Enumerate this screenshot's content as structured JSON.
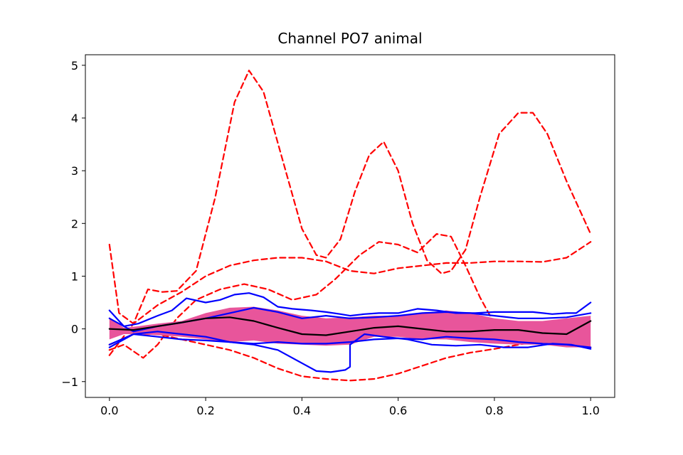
{
  "chart_data": {
    "type": "line",
    "title": "Channel PO7 animal",
    "xlabel": "",
    "ylabel": "",
    "xlim": [
      -0.05,
      1.05
    ],
    "ylim": [
      -1.3,
      5.2
    ],
    "x_ticks": [
      "0.0",
      "0.2",
      "0.4",
      "0.6",
      "0.8",
      "1.0"
    ],
    "y_ticks": [
      "−1",
      "0",
      "1",
      "2",
      "3",
      "4",
      "5"
    ],
    "grid": false,
    "band": {
      "color": "#e8559b",
      "x": [
        0.0,
        0.03,
        0.06,
        0.1,
        0.15,
        0.2,
        0.25,
        0.3,
        0.35,
        0.4,
        0.45,
        0.5,
        0.55,
        0.6,
        0.65,
        0.7,
        0.75,
        0.8,
        0.85,
        0.9,
        0.95,
        1.0
      ],
      "upper": [
        0.22,
        0.02,
        0.05,
        0.1,
        0.15,
        0.3,
        0.4,
        0.42,
        0.35,
        0.25,
        0.2,
        0.22,
        0.25,
        0.25,
        0.3,
        0.35,
        0.3,
        0.2,
        0.15,
        0.15,
        0.2,
        0.25
      ],
      "lower": [
        -0.2,
        -0.1,
        -0.1,
        -0.12,
        -0.15,
        -0.2,
        -0.25,
        -0.22,
        -0.28,
        -0.3,
        -0.32,
        -0.3,
        -0.15,
        -0.15,
        -0.2,
        -0.2,
        -0.25,
        -0.28,
        -0.3,
        -0.3,
        -0.35,
        -0.35
      ]
    },
    "series": [
      {
        "color": "#ff0000",
        "style": "dashed",
        "x": [
          0.0,
          0.02,
          0.05,
          0.08,
          0.11,
          0.14,
          0.18,
          0.22,
          0.26,
          0.29,
          0.32,
          0.36,
          0.4,
          0.43,
          0.45,
          0.48,
          0.51,
          0.54,
          0.57,
          0.6,
          0.63,
          0.66,
          0.69,
          0.71,
          0.74,
          0.77,
          0.81,
          0.85,
          0.88,
          0.91,
          0.95,
          1.0
        ],
        "y": [
          1.6,
          0.3,
          0.1,
          0.75,
          0.7,
          0.72,
          1.1,
          2.5,
          4.3,
          4.9,
          4.5,
          3.2,
          1.9,
          1.4,
          1.35,
          1.7,
          2.6,
          3.3,
          3.55,
          3.0,
          2.0,
          1.3,
          1.05,
          1.1,
          1.5,
          2.5,
          3.7,
          4.1,
          4.1,
          3.7,
          2.8,
          1.8
        ]
      },
      {
        "color": "#ff0000",
        "style": "dashed",
        "x": [
          0.0,
          0.05,
          0.1,
          0.15,
          0.2,
          0.25,
          0.3,
          0.35,
          0.4,
          0.45,
          0.5,
          0.55,
          0.6,
          0.65,
          0.7,
          0.75,
          0.8,
          0.85,
          0.9,
          0.95,
          1.0
        ],
        "y": [
          -0.5,
          0.1,
          0.45,
          0.7,
          1.0,
          1.2,
          1.3,
          1.35,
          1.35,
          1.28,
          1.1,
          1.05,
          1.15,
          1.2,
          1.25,
          1.25,
          1.28,
          1.28,
          1.27,
          1.35,
          1.65
        ]
      },
      {
        "color": "#ff0000",
        "style": "dashed",
        "x": [
          0.0,
          0.03,
          0.07,
          0.1,
          0.14,
          0.18,
          0.23,
          0.28,
          0.33,
          0.38,
          0.43,
          0.47,
          0.52,
          0.56,
          0.6,
          0.64,
          0.68,
          0.71,
          0.74,
          0.77,
          0.8,
          0.84,
          0.88,
          0.92,
          0.96,
          1.0
        ],
        "y": [
          -0.4,
          -0.3,
          -0.55,
          -0.3,
          0.2,
          0.55,
          0.75,
          0.85,
          0.75,
          0.55,
          0.65,
          0.95,
          1.4,
          1.65,
          1.6,
          1.45,
          1.8,
          1.75,
          1.2,
          0.6,
          0.1,
          -0.1,
          -0.2,
          -0.25,
          -0.3,
          -0.35
        ]
      },
      {
        "color": "#ff0000",
        "style": "dashed",
        "x": [
          0.0,
          0.05,
          0.1,
          0.15,
          0.2,
          0.25,
          0.3,
          0.35,
          0.4,
          0.45,
          0.5,
          0.55,
          0.6,
          0.65,
          0.7,
          0.75,
          0.8,
          0.85,
          0.9,
          0.95,
          1.0
        ],
        "y": [
          -0.3,
          -0.1,
          -0.1,
          -0.2,
          -0.3,
          -0.4,
          -0.55,
          -0.75,
          -0.9,
          -0.95,
          -0.98,
          -0.95,
          -0.85,
          -0.7,
          -0.55,
          -0.45,
          -0.38,
          -0.3,
          -0.22,
          -0.28,
          -0.35
        ]
      },
      {
        "color": "#0000ff",
        "style": "solid",
        "x": [
          0.0,
          0.03,
          0.06,
          0.1,
          0.13,
          0.16,
          0.2,
          0.23,
          0.26,
          0.29,
          0.32,
          0.35,
          0.38,
          0.42,
          0.45,
          0.48,
          0.5,
          0.53,
          0.56,
          0.6,
          0.64,
          0.68,
          0.72,
          0.76,
          0.8,
          0.84,
          0.88,
          0.92,
          0.95,
          0.97,
          1.0
        ],
        "y": [
          0.35,
          0.05,
          0.1,
          0.25,
          0.35,
          0.58,
          0.5,
          0.55,
          0.65,
          0.68,
          0.6,
          0.42,
          0.38,
          0.35,
          0.32,
          0.28,
          0.25,
          0.28,
          0.3,
          0.3,
          0.38,
          0.35,
          0.3,
          0.3,
          0.32,
          0.32,
          0.32,
          0.28,
          0.3,
          0.3,
          0.5
        ]
      },
      {
        "color": "#0000ff",
        "style": "solid",
        "x": [
          0.0,
          0.05,
          0.1,
          0.15,
          0.2,
          0.25,
          0.3,
          0.35,
          0.4,
          0.45,
          0.5,
          0.55,
          0.6,
          0.65,
          0.7,
          0.75,
          0.8,
          0.85,
          0.9,
          0.95,
          1.0
        ],
        "y": [
          0.2,
          -0.05,
          0.05,
          0.12,
          0.2,
          0.3,
          0.4,
          0.32,
          0.2,
          0.25,
          0.2,
          0.22,
          0.25,
          0.3,
          0.32,
          0.3,
          0.25,
          0.2,
          0.2,
          0.22,
          0.3
        ]
      },
      {
        "color": "#0000ff",
        "style": "solid",
        "x": [
          0.0,
          0.05,
          0.1,
          0.15,
          0.2,
          0.25,
          0.3,
          0.35,
          0.4,
          0.43,
          0.46,
          0.49,
          0.5,
          0.5,
          0.53,
          0.57,
          0.62,
          0.67,
          0.72,
          0.77,
          0.82,
          0.87,
          0.92,
          0.96,
          1.0
        ],
        "y": [
          -0.3,
          -0.1,
          -0.15,
          -0.2,
          -0.22,
          -0.25,
          -0.3,
          -0.4,
          -0.65,
          -0.8,
          -0.82,
          -0.78,
          -0.72,
          -0.3,
          -0.1,
          -0.15,
          -0.2,
          -0.3,
          -0.32,
          -0.3,
          -0.35,
          -0.35,
          -0.28,
          -0.3,
          -0.38
        ]
      },
      {
        "color": "#0000ff",
        "style": "solid",
        "x": [
          0.0,
          0.05,
          0.1,
          0.15,
          0.2,
          0.25,
          0.3,
          0.35,
          0.4,
          0.45,
          0.5,
          0.55,
          0.6,
          0.65,
          0.7,
          0.75,
          0.8,
          0.85,
          0.9,
          0.95,
          1.0
        ],
        "y": [
          -0.35,
          -0.1,
          -0.05,
          -0.1,
          -0.15,
          -0.25,
          -0.28,
          -0.25,
          -0.28,
          -0.28,
          -0.25,
          -0.2,
          -0.18,
          -0.2,
          -0.15,
          -0.18,
          -0.2,
          -0.25,
          -0.28,
          -0.3,
          -0.35
        ]
      },
      {
        "color": "#000000",
        "style": "solid",
        "x": [
          0.0,
          0.05,
          0.1,
          0.15,
          0.2,
          0.25,
          0.3,
          0.35,
          0.4,
          0.45,
          0.5,
          0.55,
          0.6,
          0.65,
          0.7,
          0.75,
          0.8,
          0.85,
          0.9,
          0.95,
          1.0
        ],
        "y": [
          0.0,
          -0.02,
          0.05,
          0.12,
          0.2,
          0.22,
          0.15,
          0.02,
          -0.1,
          -0.12,
          -0.05,
          0.02,
          0.05,
          0.0,
          -0.05,
          -0.05,
          -0.02,
          -0.02,
          -0.08,
          -0.1,
          0.15
        ]
      }
    ]
  }
}
